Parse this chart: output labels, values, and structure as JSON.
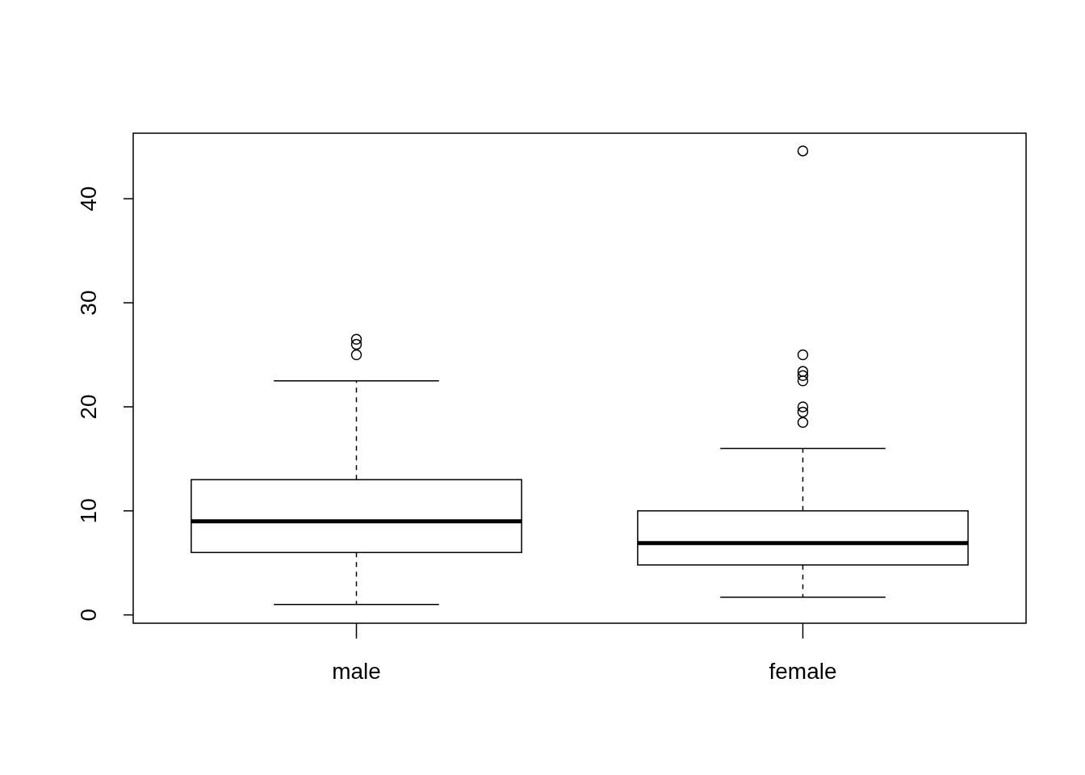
{
  "chart_data": {
    "type": "box",
    "categories": [
      "male",
      "female"
    ],
    "boxes": [
      {
        "low": 1.0,
        "q1": 6.0,
        "median": 9.0,
        "q3": 13.0,
        "high": 22.5,
        "outliers": [
          26.5,
          26,
          25
        ]
      },
      {
        "low": 1.7,
        "q1": 4.8,
        "median": 6.9,
        "q3": 10.0,
        "high": 16.0,
        "outliers": [
          44.6,
          25,
          23.4,
          23,
          22.5,
          20,
          19.5,
          18.5
        ]
      }
    ],
    "ylim": [
      -0.8,
      46.3
    ],
    "yticks": [
      0,
      10,
      20,
      30,
      40
    ],
    "grid": false
  }
}
